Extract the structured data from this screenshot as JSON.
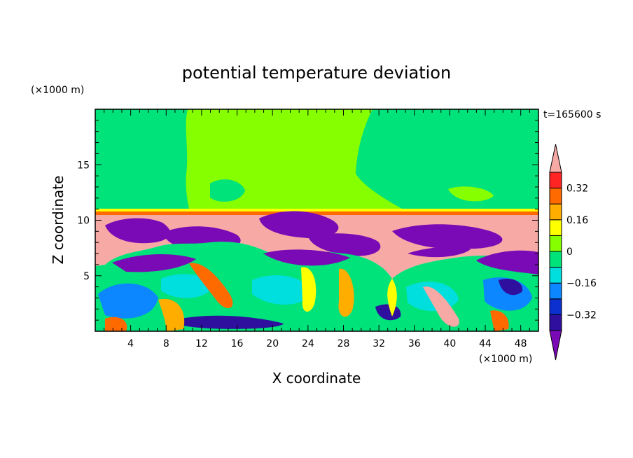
{
  "chart_data": {
    "type": "heatmap",
    "title": "potential temperature deviation",
    "xlabel": "X coordinate",
    "ylabel": "Z coordinate",
    "x_unit": "(×1000 m)",
    "y_unit": "(×1000 m)",
    "time_label": "t=165600 s",
    "xlim": [
      0,
      50
    ],
    "ylim": [
      0,
      20
    ],
    "x_ticks": [
      4,
      8,
      12,
      16,
      20,
      24,
      28,
      32,
      36,
      40,
      44,
      48
    ],
    "y_ticks": [
      5,
      10,
      15
    ],
    "colorbar": {
      "levels": [
        -0.4,
        -0.32,
        -0.24,
        -0.16,
        -0.08,
        0,
        0.08,
        0.16,
        0.24,
        0.32,
        0.4
      ],
      "colors": [
        "#7a0ab5",
        "#2e0f9e",
        "#0c2fd0",
        "#0c87ff",
        "#00dede",
        "#00e27a",
        "#86ff00",
        "#ffff00",
        "#ffae00",
        "#ff6a00",
        "#ff2424",
        "#f7a9a5"
      ],
      "tick_labels": [
        "0.32",
        "0.16",
        "0",
        "−0.16",
        "−0.32"
      ],
      "tick_values": [
        0.32,
        0.16,
        0,
        -0.16,
        -0.32
      ]
    }
  }
}
